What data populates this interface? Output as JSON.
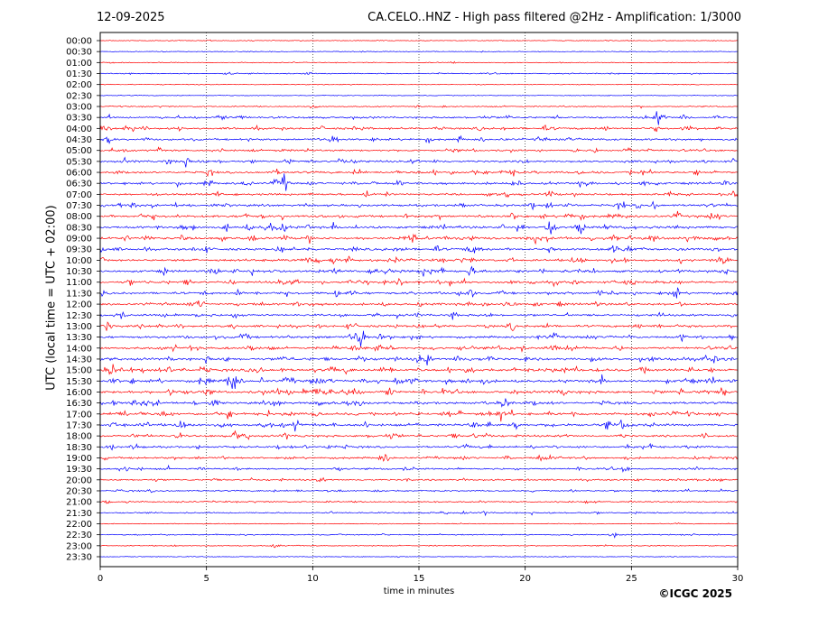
{
  "header": {
    "date": "12-09-2025",
    "title": "CA.CELO..HNZ - High pass filtered @2Hz - Amplification: 1/3000"
  },
  "footer": {
    "copyright": "©ICGC 2025"
  },
  "chart_data": {
    "type": "line",
    "subtype": "helicorder",
    "title": "CA.CELO..HNZ - High pass filtered @2Hz - Amplification: 1/3000",
    "xlabel": "time in minutes",
    "ylabel": "UTC (local time = UTC + 02:00)",
    "xlim": [
      0,
      30
    ],
    "xticks": [
      0,
      5,
      10,
      15,
      20,
      25,
      30
    ],
    "grid": "vertical dotted at 5-minute ticks",
    "series_colors": [
      "#ff0000",
      "#0000ff"
    ],
    "row_labels": [
      "00:00",
      "00:30",
      "01:00",
      "01:30",
      "02:00",
      "02:30",
      "03:00",
      "03:30",
      "04:00",
      "04:30",
      "05:00",
      "05:30",
      "06:00",
      "06:30",
      "07:00",
      "07:30",
      "08:00",
      "08:30",
      "09:00",
      "09:30",
      "10:00",
      "10:30",
      "11:00",
      "11:30",
      "12:00",
      "12:30",
      "13:00",
      "13:30",
      "14:00",
      "14:30",
      "15:00",
      "15:30",
      "16:00",
      "16:30",
      "17:00",
      "17:30",
      "18:00",
      "18:30",
      "19:00",
      "19:30",
      "20:00",
      "20:30",
      "21:00",
      "21:30",
      "22:00",
      "22:30",
      "23:00",
      "23:30"
    ],
    "row_activity": [
      0.15,
      0.12,
      0.15,
      0.3,
      0.12,
      0.12,
      0.3,
      0.6,
      0.7,
      0.7,
      0.65,
      0.7,
      0.75,
      0.75,
      0.7,
      0.8,
      0.85,
      0.9,
      0.9,
      0.85,
      0.85,
      0.85,
      0.85,
      0.8,
      0.8,
      0.75,
      0.8,
      0.8,
      0.85,
      0.9,
      0.95,
      0.95,
      0.95,
      0.85,
      0.9,
      0.9,
      0.7,
      0.65,
      0.65,
      0.55,
      0.5,
      0.45,
      0.4,
      0.4,
      0.15,
      0.3,
      0.2,
      0.1
    ],
    "events": [
      {
        "row": "01:30",
        "minute": 6.1,
        "amplitude": 0.3
      },
      {
        "row": "03:30",
        "minute": 5.7,
        "amplitude": 0.5
      },
      {
        "row": "03:30",
        "minute": 26.3,
        "amplitude": 0.7
      },
      {
        "row": "04:30",
        "minute": 10.9,
        "amplitude": 0.5
      },
      {
        "row": "05:30",
        "minute": 4.0,
        "amplitude": 0.6
      },
      {
        "row": "06:30",
        "minute": 8.6,
        "amplitude": 1.2
      },
      {
        "row": "08:30",
        "minute": 21.2,
        "amplitude": 1.0
      },
      {
        "row": "08:30",
        "minute": 22.6,
        "amplitude": 1.1
      },
      {
        "row": "11:30",
        "minute": 17.4,
        "amplitude": 0.6
      },
      {
        "row": "13:30",
        "minute": 12.2,
        "amplitude": 2.0
      },
      {
        "row": "14:30",
        "minute": 16.8,
        "amplitude": 0.6
      },
      {
        "row": "15:00",
        "minute": 4.9,
        "amplitude": 0.6
      },
      {
        "row": "15:30",
        "minute": 6.2,
        "amplitude": 2.0
      },
      {
        "row": "15:30",
        "minute": 8.9,
        "amplitude": 0.7
      },
      {
        "row": "16:00",
        "minute": 10.2,
        "amplitude": 0.6
      },
      {
        "row": "16:00",
        "minute": 13.6,
        "amplitude": 0.6
      },
      {
        "row": "17:30",
        "minute": 3.8,
        "amplitude": 0.7
      },
      {
        "row": "17:30",
        "minute": 19.6,
        "amplitude": 0.7
      },
      {
        "row": "18:00",
        "minute": 6.4,
        "amplitude": 0.6
      },
      {
        "row": "18:30",
        "minute": 10.8,
        "amplitude": 0.5
      },
      {
        "row": "19:00",
        "minute": 13.4,
        "amplitude": 0.5
      },
      {
        "row": "22:30",
        "minute": 24.2,
        "amplitude": 0.3
      },
      {
        "row": "23:00",
        "minute": 8.3,
        "amplitude": 0.3
      }
    ]
  }
}
